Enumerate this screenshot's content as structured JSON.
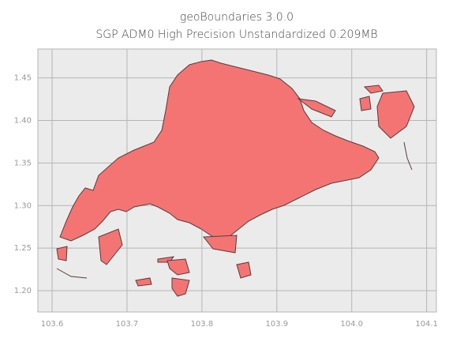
{
  "chart_data": {
    "type": "map",
    "title": "geoBoundaries 3.0.0",
    "subtitle": "SGP ADM0 High Precision Unstandardized 0.209MB",
    "color": "#f47474",
    "xlim": [
      103.581,
      104.113
    ],
    "ylim": [
      1.175,
      1.484
    ],
    "xticks": [
      103.6,
      103.7,
      103.8,
      103.9,
      {
        "value": 104.0,
        "label": "104.0"
      },
      104.1
    ],
    "yticks": [
      {
        "value": 1.2,
        "label": "1.20"
      },
      1.25,
      {
        "value": 1.3,
        "label": "1.30"
      },
      1.35,
      {
        "value": 1.4,
        "label": "1.40"
      },
      1.45
    ],
    "grid": true
  }
}
